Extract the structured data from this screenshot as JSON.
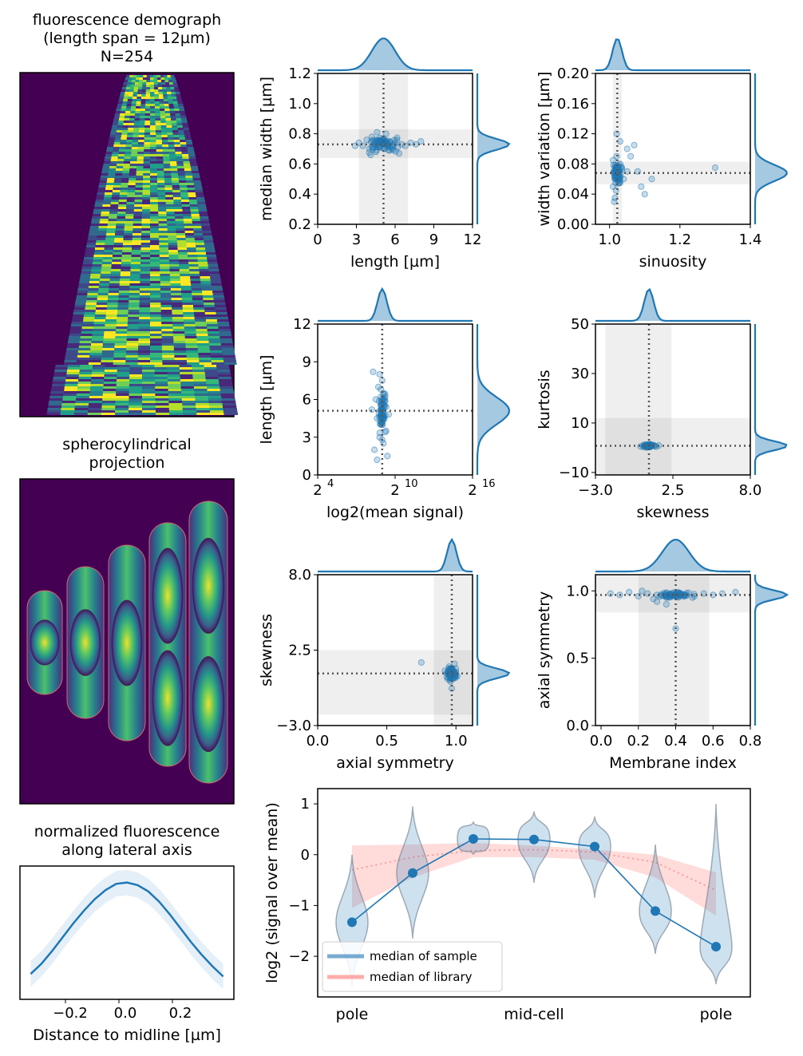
{
  "demograph": {
    "title_lines": [
      "fluorescence demograph",
      "(length span = 12µm)",
      "N=254"
    ]
  },
  "projection": {
    "title_lines": [
      "spherocylindrical",
      "projection"
    ]
  },
  "lateral": {
    "title_lines": [
      "normalized fluorescence",
      "along lateral axis"
    ],
    "xlabel": "Distance to midline [µm]",
    "xticks": [
      "−0.2",
      "0.0",
      "0.2"
    ]
  },
  "colors": {
    "accent": "#1f77b4",
    "library": "#ff9896",
    "viridis_dark": "#440154",
    "viridis_yellow": "#fde725"
  },
  "chart_data": [
    {
      "id": "length_width",
      "type": "scatter",
      "xlabel": "length [µm]",
      "ylabel": "median width [µm]",
      "xlim": [
        0,
        12
      ],
      "ylim": [
        0.2,
        1.2
      ],
      "xticks": [
        0,
        3,
        6,
        9,
        12
      ],
      "xticklabels": [
        "0",
        "3",
        "6",
        "9",
        "12"
      ],
      "yticks": [
        0.2,
        0.4,
        0.6,
        0.8,
        1.0,
        1.2
      ],
      "yticklabels": [
        "0.2",
        "0.4",
        "0.6",
        "0.8",
        "1.0",
        "1.2"
      ],
      "median": [
        5.1,
        0.73
      ],
      "xband": [
        3.2,
        7.0
      ],
      "yband": [
        0.64,
        0.83
      ],
      "xspread": 1.0,
      "yspread": 0.04,
      "points": [
        [
          3.2,
          0.74
        ],
        [
          3.5,
          0.72
        ],
        [
          3.8,
          0.76
        ],
        [
          4.0,
          0.7
        ],
        [
          4.2,
          0.78
        ],
        [
          4.4,
          0.73
        ],
        [
          4.5,
          0.68
        ],
        [
          4.7,
          0.75
        ],
        [
          4.8,
          0.71
        ],
        [
          5.0,
          0.74
        ],
        [
          5.1,
          0.77
        ],
        [
          5.2,
          0.7
        ],
        [
          5.4,
          0.73
        ],
        [
          5.5,
          0.69
        ],
        [
          5.6,
          0.75
        ],
        [
          5.8,
          0.72
        ],
        [
          6.0,
          0.74
        ],
        [
          6.2,
          0.71
        ],
        [
          6.5,
          0.73
        ],
        [
          6.8,
          0.72
        ],
        [
          7.2,
          0.74
        ],
        [
          7.6,
          0.73
        ],
        [
          8.0,
          0.75
        ],
        [
          2.9,
          0.72
        ],
        [
          4.1,
          0.66
        ],
        [
          5.3,
          0.8
        ],
        [
          6.3,
          0.67
        ],
        [
          4.6,
          0.81
        ]
      ]
    },
    {
      "id": "sinuosity_widthvar",
      "type": "scatter",
      "xlabel": "sinuosity",
      "ylabel": "width variation [µm]",
      "xlim": [
        0.96,
        1.4
      ],
      "ylim": [
        0.0,
        0.2
      ],
      "xticks": [
        1.0,
        1.2,
        1.4
      ],
      "xticklabels": [
        "1.0",
        "1.2",
        "1.4"
      ],
      "yticks": [
        0.0,
        0.04,
        0.08,
        0.12,
        0.16,
        0.2
      ],
      "yticklabels": [
        "0.00",
        "0.04",
        "0.08",
        "0.12",
        "0.16",
        "0.20"
      ],
      "median": [
        1.022,
        0.068
      ],
      "xband": [
        1.01,
        1.035
      ],
      "yband": [
        0.053,
        0.083
      ],
      "xspread": 0.01,
      "yspread": 0.012,
      "points": [
        [
          1.01,
          0.05
        ],
        [
          1.012,
          0.07
        ],
        [
          1.015,
          0.06
        ],
        [
          1.02,
          0.09
        ],
        [
          1.018,
          0.045
        ],
        [
          1.025,
          0.075
        ],
        [
          1.03,
          0.08
        ],
        [
          1.04,
          0.06
        ],
        [
          1.05,
          0.07
        ],
        [
          1.06,
          0.09
        ],
        [
          1.08,
          0.07
        ],
        [
          1.09,
          0.05
        ],
        [
          1.1,
          0.04
        ],
        [
          1.05,
          0.1
        ],
        [
          1.03,
          0.11
        ],
        [
          1.02,
          0.12
        ],
        [
          1.07,
          0.105
        ],
        [
          1.3,
          0.075
        ],
        [
          1.12,
          0.06
        ],
        [
          1.015,
          0.035
        ],
        [
          1.013,
          0.03
        ],
        [
          1.01,
          0.085
        ]
      ]
    },
    {
      "id": "signal_length",
      "type": "scatter",
      "xlabel": "log2(mean signal)",
      "ylabel": "length [µm]",
      "xlim": [
        4,
        16
      ],
      "ylim": [
        0,
        12
      ],
      "xticks": [
        4,
        10,
        16
      ],
      "xticklabels": [
        "2",
        "2",
        "2"
      ],
      "xtick_exponents": [
        "4",
        "10",
        "16"
      ],
      "yticks": [
        0,
        3,
        6,
        9,
        12
      ],
      "yticklabels": [
        "0",
        "3",
        "6",
        "9",
        "12"
      ],
      "median": [
        9.0,
        5.1
      ],
      "yband": null,
      "xband": null,
      "xspread": 0.25,
      "yspread": 1.2,
      "points": [
        [
          8.3,
          8.2
        ],
        [
          8.8,
          8.0
        ],
        [
          9.0,
          7.5
        ],
        [
          8.7,
          7.0
        ],
        [
          9.1,
          6.5
        ],
        [
          8.5,
          6.0
        ],
        [
          9.2,
          5.5
        ],
        [
          8.9,
          5.0
        ],
        [
          8.6,
          4.5
        ],
        [
          9.0,
          4.0
        ],
        [
          9.3,
          3.5
        ],
        [
          8.8,
          3.0
        ],
        [
          9.1,
          2.5
        ],
        [
          8.4,
          2.0
        ],
        [
          9.4,
          1.5
        ],
        [
          8.6,
          1.2
        ],
        [
          9.0,
          2.8
        ],
        [
          8.2,
          5.2
        ],
        [
          9.5,
          4.8
        ],
        [
          8.9,
          6.8
        ]
      ]
    },
    {
      "id": "skew_kurt",
      "type": "scatter",
      "xlabel": "skewness",
      "ylabel": "kurtosis",
      "xlim": [
        -3.0,
        8.0
      ],
      "ylim": [
        -11,
        50
      ],
      "xticks": [
        -3.0,
        2.5,
        8.0
      ],
      "xticklabels": [
        "−3.0",
        "2.5",
        "8.0"
      ],
      "yticks": [
        -10,
        10,
        30,
        50
      ],
      "yticklabels": [
        "−10",
        "10",
        "30",
        "50"
      ],
      "median": [
        0.8,
        0.8
      ],
      "xband": [
        -2.3,
        2.4
      ],
      "yband": [
        -11,
        12
      ],
      "xspread": 0.3,
      "yspread": 0.5,
      "points": [
        [
          0.2,
          0.5
        ],
        [
          0.5,
          0.8
        ],
        [
          0.8,
          0.6
        ],
        [
          1.0,
          1.0
        ],
        [
          1.2,
          0.7
        ],
        [
          1.5,
          0.9
        ],
        [
          0.4,
          0.3
        ],
        [
          0.9,
          1.2
        ],
        [
          1.3,
          0.4
        ]
      ]
    },
    {
      "id": "axial_skew",
      "type": "scatter",
      "xlabel": "axial symmetry",
      "ylabel": "skewness",
      "xlim": [
        0.0,
        1.12
      ],
      "ylim": [
        -3.0,
        8.0
      ],
      "xticks": [
        0.0,
        0.5,
        1.0
      ],
      "xticklabels": [
        "0.0",
        "0.5",
        "1.0"
      ],
      "yticks": [
        -3.0,
        2.5,
        8.0
      ],
      "yticklabels": [
        "−3.0",
        "2.5",
        "8.0"
      ],
      "median": [
        0.97,
        0.8
      ],
      "xband": [
        0.84,
        1.12
      ],
      "yband": [
        -2.2,
        2.5
      ],
      "xspread": 0.03,
      "yspread": 0.4,
      "points": [
        [
          0.92,
          1.0
        ],
        [
          0.95,
          0.7
        ],
        [
          0.97,
          1.2
        ],
        [
          0.98,
          0.5
        ],
        [
          1.0,
          0.9
        ],
        [
          0.96,
          0.2
        ],
        [
          0.99,
          1.5
        ],
        [
          0.94,
          0.4
        ],
        [
          0.97,
          -0.3
        ],
        [
          0.75,
          1.6
        ],
        [
          0.95,
          1.3
        ],
        [
          1.01,
          0.6
        ]
      ]
    },
    {
      "id": "membrane_axial",
      "type": "scatter",
      "xlabel": "Membrane index",
      "ylabel": "axial symmetry",
      "xlim": [
        -0.03,
        0.8
      ],
      "ylim": [
        0.0,
        1.12
      ],
      "xticks": [
        0.0,
        0.2,
        0.4,
        0.6,
        0.8
      ],
      "xticklabels": [
        "0.0",
        "0.2",
        "0.4",
        "0.6",
        "0.8"
      ],
      "yticks": [
        0.0,
        0.5,
        1.0
      ],
      "yticklabels": [
        "0.0",
        "0.5",
        "1.0"
      ],
      "median": [
        0.4,
        0.97
      ],
      "xband": [
        0.2,
        0.58
      ],
      "yband": [
        0.84,
        1.12
      ],
      "xspread": 0.08,
      "yspread": 0.02,
      "points": [
        [
          0.05,
          0.98
        ],
        [
          0.1,
          0.97
        ],
        [
          0.15,
          0.99
        ],
        [
          0.2,
          0.96
        ],
        [
          0.25,
          0.98
        ],
        [
          0.3,
          0.97
        ],
        [
          0.35,
          0.95
        ],
        [
          0.4,
          0.98
        ],
        [
          0.45,
          0.97
        ],
        [
          0.5,
          0.96
        ],
        [
          0.55,
          0.98
        ],
        [
          0.6,
          0.97
        ],
        [
          0.65,
          0.98
        ],
        [
          0.72,
          0.99
        ],
        [
          0.3,
          0.92
        ],
        [
          0.35,
          0.9
        ],
        [
          0.4,
          0.72
        ],
        [
          0.28,
          0.94
        ],
        [
          0.22,
          1.0
        ]
      ]
    },
    {
      "id": "lateral_profile",
      "type": "line",
      "x": [
        -0.36,
        -0.32,
        -0.28,
        -0.24,
        -0.2,
        -0.16,
        -0.12,
        -0.08,
        -0.04,
        0.0,
        0.04,
        0.08,
        0.12,
        0.16,
        0.2,
        0.24,
        0.28,
        0.32,
        0.36
      ],
      "y": [
        0.2,
        0.28,
        0.38,
        0.49,
        0.6,
        0.7,
        0.79,
        0.86,
        0.91,
        0.92,
        0.9,
        0.85,
        0.77,
        0.67,
        0.56,
        0.45,
        0.35,
        0.26,
        0.18
      ],
      "band": 0.1,
      "xlim": [
        -0.4,
        0.4
      ],
      "ylim": [
        0.0,
        1.05
      ]
    },
    {
      "id": "axial_profile",
      "type": "line",
      "ylabel": "log2 (signal over mean)",
      "xticklabels": [
        "pole",
        "mid-cell",
        "pole"
      ],
      "ylim": [
        -2.8,
        1.3
      ],
      "yticks": [
        -2,
        -1,
        0,
        1
      ],
      "yticklabels": [
        "−2",
        "−1",
        "0",
        "1"
      ],
      "sample_x": [
        0,
        1,
        2,
        3,
        4,
        5,
        6
      ],
      "sample_median": [
        -1.33,
        -0.36,
        0.31,
        0.3,
        0.16,
        -1.11,
        -1.81
      ],
      "violin_range": [
        [
          -2.6,
          -0.0
        ],
        [
          -1.65,
          0.95
        ],
        [
          0.0,
          0.65
        ],
        [
          -0.55,
          0.85
        ],
        [
          -0.85,
          0.75
        ],
        [
          -1.95,
          0.2
        ],
        [
          -2.55,
          1.0
        ]
      ],
      "library_median": [
        -0.3,
        -0.05,
        0.08,
        0.1,
        0.05,
        -0.15,
        -0.7
      ],
      "library_band": [
        [
          -1.05,
          0.18
        ],
        [
          -0.45,
          0.2
        ],
        [
          -0.05,
          0.23
        ],
        [
          -0.05,
          0.18
        ],
        [
          -0.1,
          0.1
        ],
        [
          -0.45,
          0.0
        ],
        [
          -1.2,
          -0.35
        ]
      ],
      "legend": [
        "median of sample",
        "median of library"
      ]
    }
  ]
}
